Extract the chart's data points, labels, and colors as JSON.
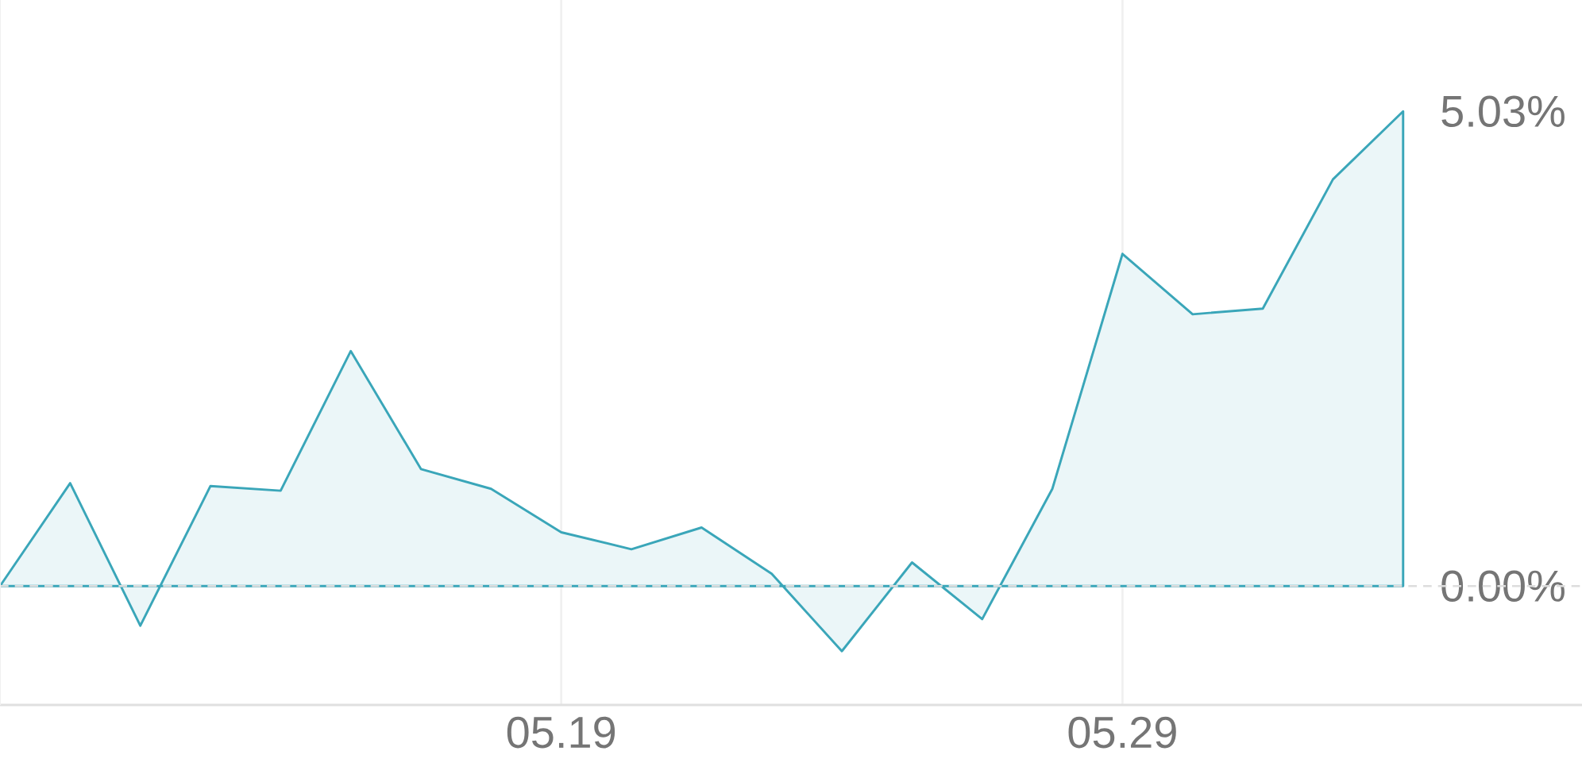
{
  "chart_data": {
    "type": "area",
    "categories": [
      null,
      null,
      null,
      null,
      null,
      null,
      null,
      null,
      "05.19",
      null,
      null,
      null,
      null,
      null,
      null,
      null,
      "05.29",
      null,
      null,
      null,
      null
    ],
    "values": [
      0,
      1.09,
      -0.42,
      1.06,
      1.01,
      2.49,
      1.24,
      1.03,
      0.57,
      0.39,
      0.62,
      0.13,
      -0.69,
      0.25,
      -0.35,
      1.03,
      3.52,
      2.88,
      2.94,
      4.31,
      5.03
    ],
    "color": "#3aa6b9",
    "yticks": [
      {
        "value": 0,
        "label": "0.00%"
      },
      {
        "value": 5.03,
        "label": "5.03%"
      }
    ],
    "ylim": [
      -1.26,
      6.21
    ],
    "grid": "x",
    "ref_lines": [
      {
        "axis": "y",
        "value": 0,
        "color": "#dddddd",
        "line_style": "dashed"
      }
    ]
  }
}
